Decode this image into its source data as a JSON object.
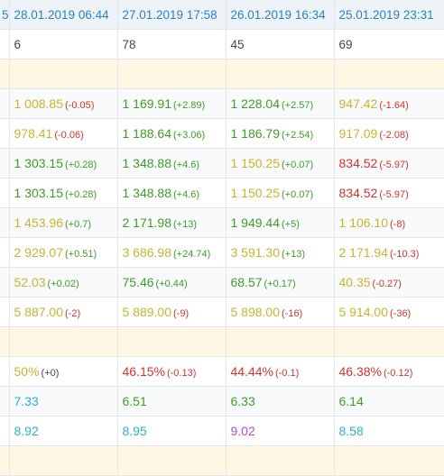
{
  "header": {
    "stub": "5",
    "dates": [
      "28.01.2019 06:44",
      "27.01.2019 17:58",
      "26.01.2019 16:34",
      "25.01.2019 23:31"
    ]
  },
  "counts": [
    "6",
    "78",
    "45",
    "69"
  ],
  "rows_top": [
    [
      {
        "v": "1 008.85",
        "d": "(-0.05)",
        "c": "yellow",
        "dc": "red"
      },
      {
        "v": "1 169.91",
        "d": "(+2.89)",
        "c": "green",
        "dc": "green"
      },
      {
        "v": "1 228.04",
        "d": "(+2.57)",
        "c": "green",
        "dc": "green"
      },
      {
        "v": "947.42",
        "d": "(-1.64)",
        "c": "yellow",
        "dc": "red"
      }
    ],
    [
      {
        "v": "978.41",
        "d": "(-0.06)",
        "c": "yellow",
        "dc": "red"
      },
      {
        "v": "1 188.64",
        "d": "(+3.06)",
        "c": "green",
        "dc": "green"
      },
      {
        "v": "1 186.79",
        "d": "(+2.54)",
        "c": "green",
        "dc": "green"
      },
      {
        "v": "917.09",
        "d": "(-2.08)",
        "c": "yellow",
        "dc": "red"
      }
    ],
    [
      {
        "v": "1 303.15",
        "d": "(+0.28)",
        "c": "green",
        "dc": "green"
      },
      {
        "v": "1 348.88",
        "d": "(+4.6)",
        "c": "green",
        "dc": "green"
      },
      {
        "v": "1 150.25",
        "d": "(+0.07)",
        "c": "yellow",
        "dc": "green"
      },
      {
        "v": "834.52",
        "d": "(-5.97)",
        "c": "red",
        "dc": "red"
      }
    ],
    [
      {
        "v": "1 303.15",
        "d": "(+0.28)",
        "c": "green",
        "dc": "green"
      },
      {
        "v": "1 348.88",
        "d": "(+4.6)",
        "c": "green",
        "dc": "green"
      },
      {
        "v": "1 150.25",
        "d": "(+0.07)",
        "c": "yellow",
        "dc": "green"
      },
      {
        "v": "834.52",
        "d": "(-5.97)",
        "c": "red",
        "dc": "red"
      }
    ],
    [
      {
        "v": "1 453.96",
        "d": "(+0.7)",
        "c": "yellow",
        "dc": "green"
      },
      {
        "v": "2 171.98",
        "d": "(+13)",
        "c": "green",
        "dc": "green"
      },
      {
        "v": "1 949.44",
        "d": "(+5)",
        "c": "green",
        "dc": "green"
      },
      {
        "v": "1 106.10",
        "d": "(-8)",
        "c": "yellow",
        "dc": "red"
      }
    ],
    [
      {
        "v": "2 929.07",
        "d": "(+0.51)",
        "c": "yellow",
        "dc": "green"
      },
      {
        "v": "3 686.98",
        "d": "(+24.74)",
        "c": "yellow",
        "dc": "green"
      },
      {
        "v": "3 591.30",
        "d": "(+13)",
        "c": "yellow",
        "dc": "green"
      },
      {
        "v": "2 171.94",
        "d": "(-10.3)",
        "c": "yellow",
        "dc": "red"
      }
    ],
    [
      {
        "v": "52.03",
        "d": "(+0.02)",
        "c": "yellow",
        "dc": "green"
      },
      {
        "v": "75.46",
        "d": "(+0.44)",
        "c": "green",
        "dc": "green"
      },
      {
        "v": "68.57",
        "d": "(+0.17)",
        "c": "green",
        "dc": "green"
      },
      {
        "v": "40.35",
        "d": "(-0.27)",
        "c": "yellow",
        "dc": "red"
      }
    ],
    [
      {
        "v": "5 887.00",
        "d": "(-2)",
        "c": "yellow",
        "dc": "red"
      },
      {
        "v": "5 889.00",
        "d": "(-9)",
        "c": "yellow",
        "dc": "red"
      },
      {
        "v": "5 898.00",
        "d": "(-16)",
        "c": "yellow",
        "dc": "red"
      },
      {
        "v": "5 914.00",
        "d": "(-36)",
        "c": "yellow",
        "dc": "red"
      }
    ]
  ],
  "rows_bottom": [
    [
      {
        "v": "50%",
        "d": "(+0)",
        "c": "yellow",
        "dc": "dgray"
      },
      {
        "v": "46.15%",
        "d": "(-0.13)",
        "c": "red",
        "dc": "red"
      },
      {
        "v": "44.44%",
        "d": "(-0.1)",
        "c": "red",
        "dc": "red"
      },
      {
        "v": "46.38%",
        "d": "(-0.12)",
        "c": "red",
        "dc": "red"
      }
    ],
    [
      {
        "v": "7.33",
        "d": "",
        "c": "cyan",
        "dc": ""
      },
      {
        "v": "6.51",
        "d": "",
        "c": "green",
        "dc": ""
      },
      {
        "v": "6.33",
        "d": "",
        "c": "green",
        "dc": ""
      },
      {
        "v": "6.14",
        "d": "",
        "c": "green",
        "dc": ""
      }
    ],
    [
      {
        "v": "8.92",
        "d": "",
        "c": "cyan",
        "dc": ""
      },
      {
        "v": "8.95",
        "d": "",
        "c": "cyan",
        "dc": ""
      },
      {
        "v": "9.02",
        "d": "",
        "c": "magenta",
        "dc": ""
      },
      {
        "v": "8.58",
        "d": "",
        "c": "cyan",
        "dc": ""
      }
    ]
  ]
}
